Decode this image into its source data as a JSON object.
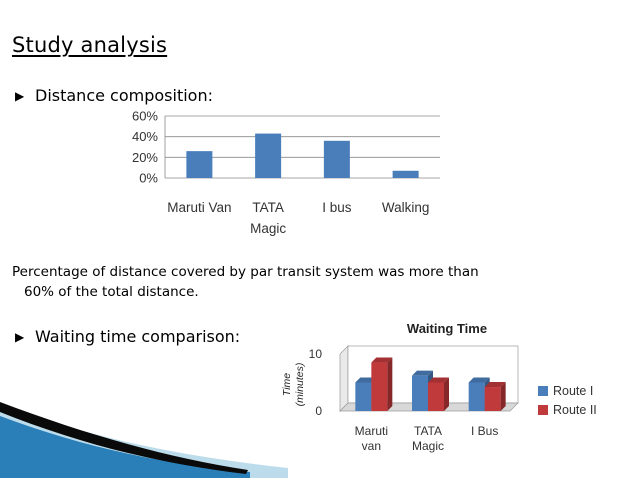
{
  "slide": {
    "title": "Study analysis",
    "bullets": [
      {
        "glyph": "▶",
        "text": "Distance composition:"
      },
      {
        "glyph": "▶",
        "text": "Waiting time comparison:"
      }
    ],
    "paragraph": {
      "line1": "Percentage of distance covered by par transit system was more than",
      "line2": "60% of the total distance."
    }
  },
  "colors": {
    "bar_blue": "#4a7ebb",
    "route2_red": "#c0393b",
    "wave_dark": "#0a0a0a",
    "wave_blue": "#2a7fb8",
    "wave_light": "#bcdcec"
  },
  "chart_data": [
    {
      "type": "bar",
      "title": "",
      "categories": [
        "Maruti Van",
        "TATA Magic",
        "I bus",
        "Walking"
      ],
      "category_lines": [
        [
          "Maruti Van"
        ],
        [
          "TATA",
          "Magic"
        ],
        [
          "I bus"
        ],
        [
          "Walking"
        ]
      ],
      "values": [
        0.26,
        0.43,
        0.36,
        0.07
      ],
      "yticks": [
        "60%",
        "40%",
        "20%",
        "0%"
      ],
      "ylim": [
        0,
        0.6
      ],
      "grid": true,
      "legend": "none"
    },
    {
      "type": "bar",
      "title": "Waiting Time",
      "ylabel_lines": [
        "Time",
        "(minutes)"
      ],
      "categories": [
        "Maruti van",
        "TATA Magic",
        "I Bus"
      ],
      "category_lines": [
        [
          "Maruti",
          "van"
        ],
        [
          "TATA",
          "Magic"
        ],
        [
          "I Bus"
        ]
      ],
      "yticks": [
        "10",
        "0"
      ],
      "ylim": [
        0,
        10
      ],
      "series": [
        {
          "name": "Route I",
          "values": [
            5,
            6.2,
            5
          ]
        },
        {
          "name": "Route II",
          "values": [
            8.5,
            5,
            4.2
          ]
        }
      ],
      "legend": "right"
    }
  ]
}
